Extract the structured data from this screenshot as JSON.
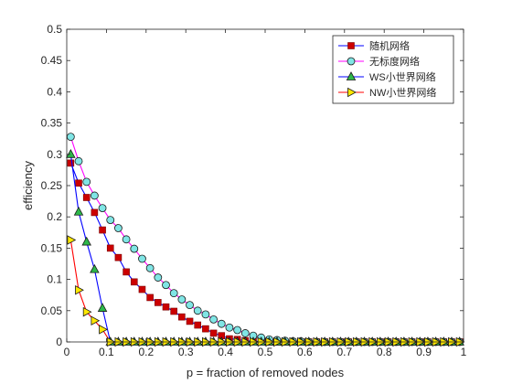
{
  "chart_data": {
    "type": "line",
    "title": "",
    "xlabel": "p = fraction of removed nodes",
    "ylabel": "efficiency",
    "xlim": [
      0,
      1
    ],
    "ylim": [
      0,
      0.5
    ],
    "xticks": [
      0,
      0.1,
      0.2,
      0.3,
      0.4,
      0.5,
      0.6,
      0.7,
      0.8,
      0.9,
      1
    ],
    "xtick_labels": [
      "0",
      "0.1",
      "0.2",
      "0.3",
      "0.4",
      "0.5",
      "0.6",
      "0.7",
      "0.8",
      "0.9",
      "1"
    ],
    "yticks": [
      0,
      0.05,
      0.1,
      0.15,
      0.2,
      0.25,
      0.3,
      0.35,
      0.4,
      0.45,
      0.5
    ],
    "ytick_labels": [
      "0",
      "0.05",
      "0.1",
      "0.15",
      "0.2",
      "0.25",
      "0.3",
      "0.35",
      "0.4",
      "0.45",
      "0.5"
    ],
    "grid": false,
    "legend_position": "top-right",
    "series": [
      {
        "name": "随机网络",
        "color": "#0000ff",
        "marker": "square",
        "marker_fill": "#cc0000",
        "x": [
          0.01,
          0.03,
          0.05,
          0.07,
          0.09,
          0.11,
          0.13,
          0.15,
          0.17,
          0.19,
          0.21,
          0.23,
          0.25,
          0.27,
          0.29,
          0.31,
          0.33,
          0.35,
          0.37,
          0.39,
          0.41,
          0.43,
          0.45,
          0.47,
          0.49,
          0.51,
          0.53,
          0.55,
          0.57,
          0.59,
          0.61,
          0.63,
          0.65,
          0.67,
          0.69,
          0.71,
          0.73,
          0.75,
          0.77,
          0.79,
          0.81,
          0.83,
          0.85,
          0.87,
          0.89,
          0.91,
          0.93,
          0.95,
          0.97,
          0.99
        ],
        "y": [
          0.286,
          0.254,
          0.231,
          0.207,
          0.179,
          0.15,
          0.135,
          0.112,
          0.096,
          0.084,
          0.071,
          0.063,
          0.056,
          0.049,
          0.04,
          0.033,
          0.027,
          0.021,
          0.014,
          0.01,
          0.005,
          0.004,
          0.002,
          0.001,
          0.001,
          0,
          0,
          0,
          0,
          0,
          0,
          0,
          0,
          0,
          0,
          0,
          0,
          0,
          0,
          0,
          0,
          0,
          0,
          0,
          0,
          0,
          0,
          0,
          0,
          0
        ]
      },
      {
        "name": "无标度网络",
        "color": "#ff00ff",
        "marker": "circle",
        "marker_fill": "#80e5e5",
        "x": [
          0.01,
          0.03,
          0.05,
          0.07,
          0.09,
          0.11,
          0.13,
          0.15,
          0.17,
          0.19,
          0.21,
          0.23,
          0.25,
          0.27,
          0.29,
          0.31,
          0.33,
          0.35,
          0.37,
          0.39,
          0.41,
          0.43,
          0.45,
          0.47,
          0.49,
          0.51,
          0.53,
          0.55,
          0.57,
          0.59,
          0.61,
          0.63,
          0.65,
          0.67,
          0.69,
          0.71,
          0.73,
          0.75,
          0.77,
          0.79,
          0.81,
          0.83,
          0.85,
          0.87,
          0.89,
          0.91,
          0.93,
          0.95,
          0.97,
          0.99
        ],
        "y": [
          0.328,
          0.289,
          0.256,
          0.234,
          0.214,
          0.195,
          0.182,
          0.164,
          0.149,
          0.133,
          0.118,
          0.103,
          0.091,
          0.078,
          0.068,
          0.059,
          0.05,
          0.044,
          0.036,
          0.029,
          0.023,
          0.019,
          0.014,
          0.01,
          0.007,
          0.004,
          0.003,
          0.002,
          0.001,
          0.001,
          0,
          0,
          0,
          0,
          0,
          0,
          0,
          0,
          0,
          0,
          0,
          0,
          0,
          0,
          0,
          0,
          0,
          0,
          0,
          0
        ]
      },
      {
        "name": "WS小世界网络",
        "color": "#0000ff",
        "marker": "triangle",
        "marker_fill": "#2db84a",
        "x": [
          0.01,
          0.03,
          0.05,
          0.07,
          0.09,
          0.11,
          0.13,
          0.15,
          0.17,
          0.19,
          0.21,
          0.23,
          0.25,
          0.27,
          0.29,
          0.31,
          0.33,
          0.35,
          0.37,
          0.39,
          0.41,
          0.43,
          0.45,
          0.47,
          0.49,
          0.51,
          0.53,
          0.55,
          0.57,
          0.59,
          0.61,
          0.63,
          0.65,
          0.67,
          0.69,
          0.71,
          0.73,
          0.75,
          0.77,
          0.79,
          0.81,
          0.83,
          0.85,
          0.87,
          0.89,
          0.91,
          0.93,
          0.95,
          0.97,
          0.99
        ],
        "y": [
          0.3,
          0.208,
          0.16,
          0.116,
          0.054,
          0,
          0,
          0,
          0,
          0,
          0,
          0,
          0,
          0,
          0,
          0,
          0,
          0,
          0,
          0,
          0,
          0,
          0,
          0,
          0,
          0,
          0,
          0,
          0,
          0,
          0,
          0,
          0,
          0,
          0,
          0,
          0,
          0,
          0,
          0,
          0,
          0,
          0,
          0,
          0,
          0,
          0,
          0,
          0,
          0
        ]
      },
      {
        "name": "NW小世界网络",
        "color": "#ff0000",
        "marker": "triangle-right",
        "marker_fill": "#ffe800",
        "x": [
          0.01,
          0.03,
          0.05,
          0.07,
          0.09,
          0.11,
          0.13,
          0.15,
          0.17,
          0.19,
          0.21,
          0.23,
          0.25,
          0.27,
          0.29,
          0.31,
          0.33,
          0.35,
          0.37,
          0.39,
          0.41,
          0.43,
          0.45,
          0.47,
          0.49,
          0.51,
          0.53,
          0.55,
          0.57,
          0.59,
          0.61,
          0.63,
          0.65,
          0.67,
          0.69,
          0.71,
          0.73,
          0.75,
          0.77,
          0.79,
          0.81,
          0.83,
          0.85,
          0.87,
          0.89,
          0.91,
          0.93,
          0.95,
          0.97,
          0.99
        ],
        "y": [
          0.163,
          0.083,
          0.048,
          0.034,
          0.02,
          0,
          0,
          0,
          0,
          0,
          0,
          0,
          0,
          0,
          0,
          0,
          0,
          0,
          0,
          0,
          0,
          0,
          0,
          0,
          0,
          0,
          0,
          0,
          0,
          0,
          0,
          0,
          0,
          0,
          0,
          0,
          0,
          0,
          0,
          0,
          0,
          0,
          0,
          0,
          0,
          0,
          0,
          0,
          0,
          0
        ]
      }
    ]
  }
}
